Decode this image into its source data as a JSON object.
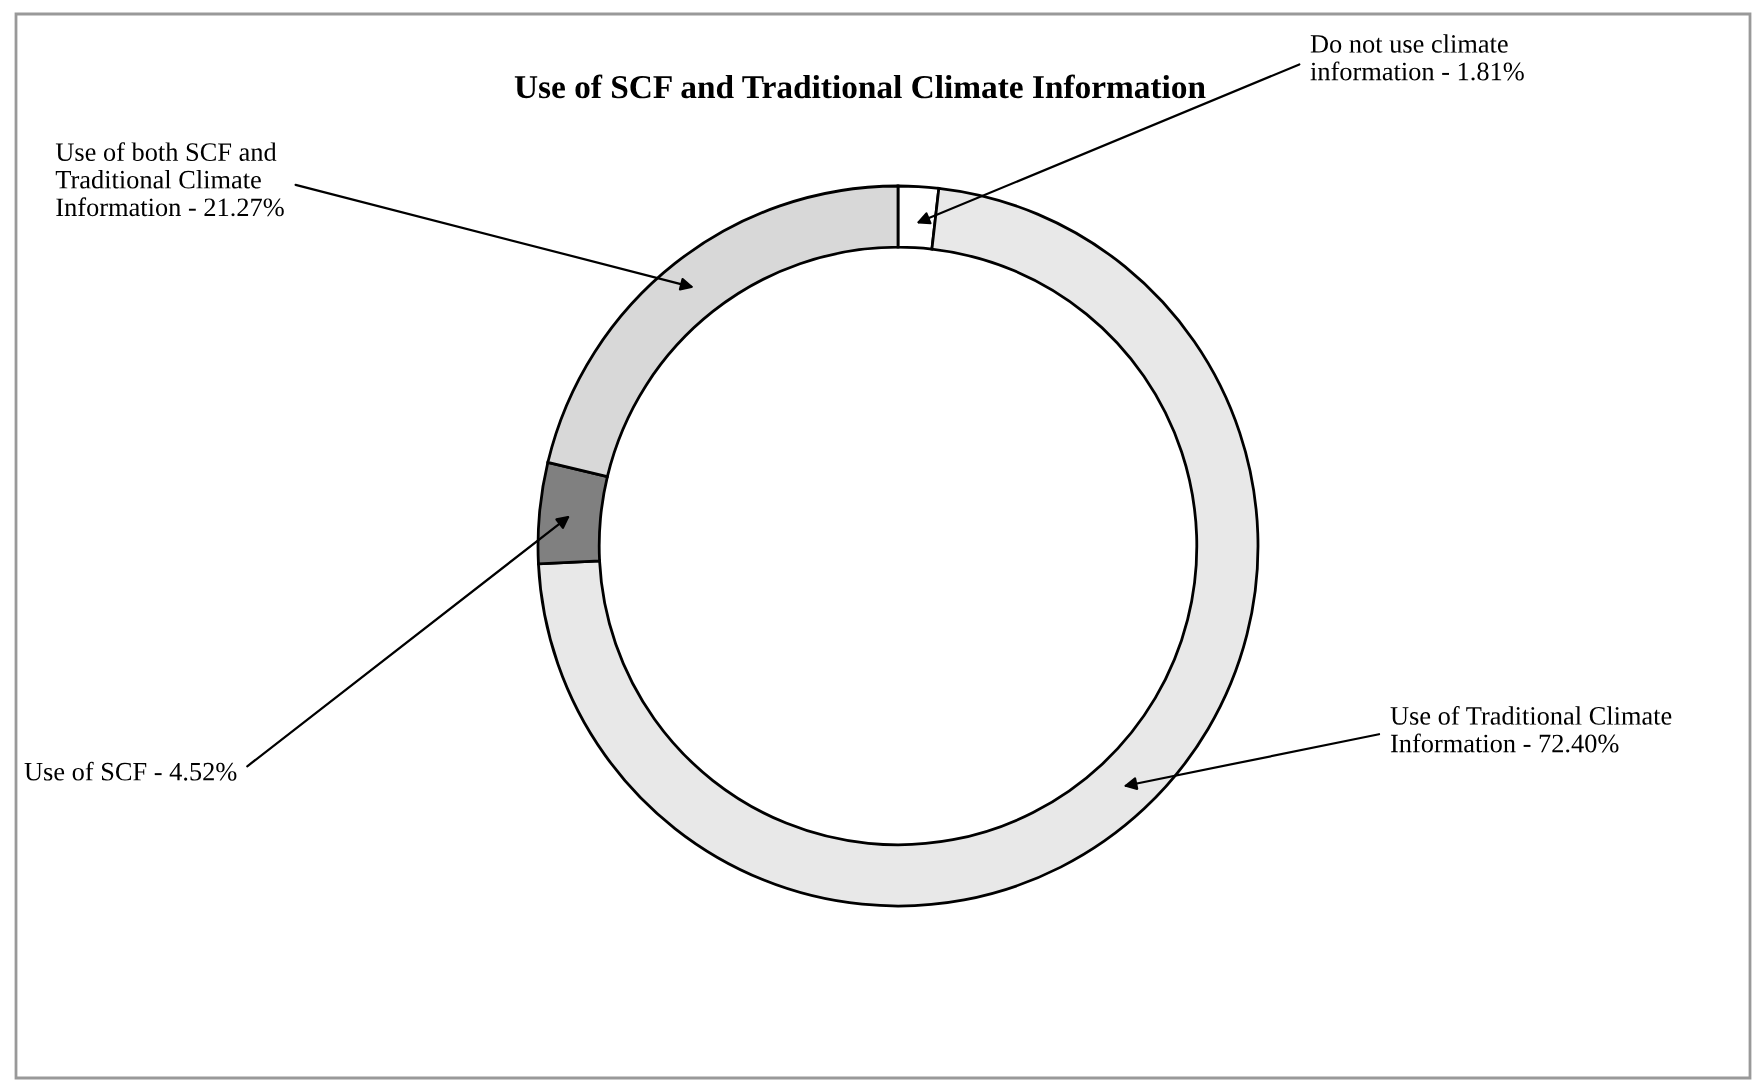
{
  "chart_data": {
    "type": "donut",
    "title": "Use of SCF and Traditional Climate Information",
    "categories": [
      "Do not use climate\ninformation - 1.81%",
      "Use of Traditional Climate\nInformation - 72.40%",
      "Use of SCF - 4.52%",
      "Use of both SCF and\nTraditional Climate\nInformation - 21.27%"
    ],
    "values": [
      1.81,
      72.4,
      4.52,
      21.27
    ],
    "colors": [
      "#ffffff",
      "#e8e8e8",
      "#808080",
      "#d8d8d8"
    ],
    "legend": false
  }
}
